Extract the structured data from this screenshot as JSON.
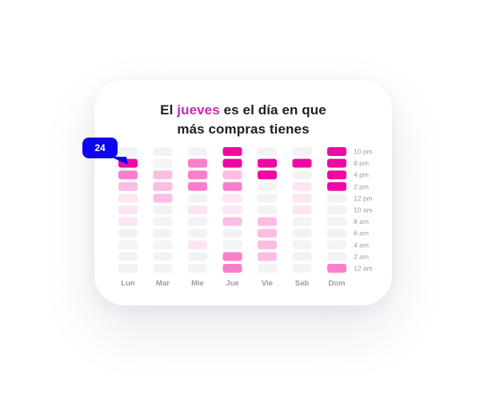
{
  "title": {
    "part1": "El ",
    "highlight": "jueves",
    "part2": " es el día en que",
    "line2": "más compras tienes"
  },
  "tooltip": {
    "value": "24"
  },
  "colors": {
    "level0": "#f3f3f5",
    "level1": "#fde5f4",
    "level2": "#fbbde3",
    "level3": "#f97ecb",
    "level4": "#f007a5",
    "highlight_text": "#c22bb4",
    "tooltip_bg": "#0f04f0"
  },
  "chart_data": {
    "type": "heatmap",
    "columns": [
      "Lun",
      "Mar",
      "Mie",
      "Jue",
      "Vie",
      "Sab",
      "Dom"
    ],
    "rows": [
      "10 pm",
      "8 pm",
      "4 pm",
      "2 pm",
      "12 pm",
      "10 am",
      "8 am",
      "6 am",
      "4 am",
      "2 am",
      "12 am"
    ],
    "values": [
      [
        0,
        4,
        3,
        2,
        1,
        1,
        1,
        0,
        0,
        0,
        0
      ],
      [
        0,
        0,
        2,
        2,
        2,
        0,
        0,
        0,
        0,
        0,
        0
      ],
      [
        0,
        3,
        3,
        3,
        0,
        1,
        0,
        0,
        1,
        0,
        0
      ],
      [
        4,
        4,
        2,
        3,
        1,
        1,
        2,
        0,
        0,
        3,
        3
      ],
      [
        0,
        4,
        4,
        0,
        0,
        0,
        2,
        2,
        2,
        2,
        0
      ],
      [
        0,
        4,
        0,
        1,
        1,
        1,
        0,
        0,
        0,
        0,
        0
      ],
      [
        4,
        4,
        4,
        4,
        0,
        0,
        0,
        0,
        0,
        0,
        3
      ]
    ],
    "value_scale": "0 = none, 4 = highest",
    "tooltip_value": 24
  }
}
